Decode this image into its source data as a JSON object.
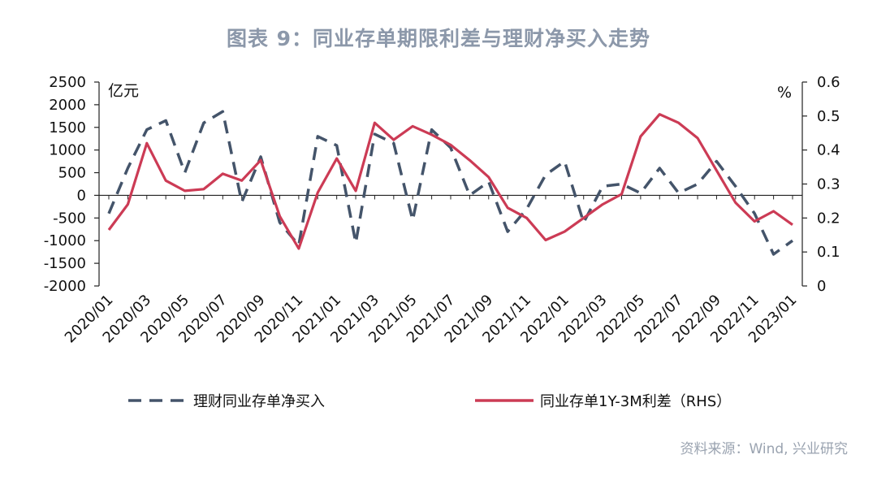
{
  "title": "图表 9：同业存单期限利差与理财净买入走势",
  "source": "资料来源：Wind, 兴业研究",
  "chart_data": {
    "type": "line",
    "x": [
      "2020/01",
      "2020/02",
      "2020/03",
      "2020/04",
      "2020/05",
      "2020/06",
      "2020/07",
      "2020/08",
      "2020/09",
      "2020/10",
      "2020/11",
      "2020/12",
      "2021/01",
      "2021/02",
      "2021/03",
      "2021/04",
      "2021/05",
      "2021/06",
      "2021/07",
      "2021/08",
      "2021/09",
      "2021/10",
      "2021/11",
      "2021/12",
      "2022/01",
      "2022/02",
      "2022/03",
      "2022/04",
      "2022/05",
      "2022/06",
      "2022/07",
      "2022/08",
      "2022/09",
      "2022/10",
      "2022/11",
      "2022/12",
      "2023/01"
    ],
    "xticks": [
      "2020/01",
      "2020/03",
      "2020/05",
      "2020/07",
      "2020/09",
      "2020/11",
      "2021/01",
      "2021/03",
      "2021/05",
      "2021/07",
      "2021/09",
      "2021/11",
      "2022/01",
      "2022/03",
      "2022/05",
      "2022/07",
      "2022/09",
      "2022/11",
      "2023/01"
    ],
    "series": [
      {
        "name": "理财同业存单净买入",
        "axis": "left",
        "color": "#44546a",
        "dash": true,
        "values": [
          -400,
          600,
          1450,
          1650,
          500,
          1600,
          1850,
          -150,
          850,
          -600,
          -1100,
          1300,
          1100,
          -1050,
          1350,
          1150,
          -550,
          1450,
          1050,
          0,
          300,
          -800,
          -300,
          450,
          750,
          -600,
          200,
          250,
          50,
          600,
          50,
          250,
          750,
          200,
          -400,
          -1300,
          -1000
        ]
      },
      {
        "name": "同业存单1Y-3M利差（RHS）",
        "axis": "right",
        "color": "#cc3b55",
        "dash": false,
        "values": [
          0.165,
          0.24,
          0.42,
          0.31,
          0.28,
          0.285,
          0.33,
          0.31,
          0.37,
          0.205,
          0.11,
          0.275,
          0.375,
          0.28,
          0.48,
          0.43,
          0.47,
          0.445,
          0.415,
          0.37,
          0.32,
          0.23,
          0.2,
          0.135,
          0.16,
          0.2,
          0.24,
          0.27,
          0.44,
          0.505,
          0.48,
          0.435,
          0.34,
          0.245,
          0.19,
          0.22,
          0.18
        ]
      }
    ],
    "yaxis_left": {
      "label": "亿元",
      "min": -2000,
      "max": 2500,
      "ticks": [
        "2500",
        "2000",
        "1500",
        "1000",
        "500",
        "0",
        "-500",
        "-1000",
        "-1500",
        "-2000"
      ]
    },
    "yaxis_right": {
      "label": "%",
      "min": 0,
      "max": 0.6,
      "ticks": [
        "0.6",
        "0.5",
        "0.4",
        "0.3",
        "0.2",
        "0.1",
        "0"
      ]
    },
    "grid": false,
    "legend": "bottom"
  },
  "colors": {
    "title": "#8c98aa",
    "dashed_series": "#44546a",
    "solid_series": "#cc3b55"
  }
}
